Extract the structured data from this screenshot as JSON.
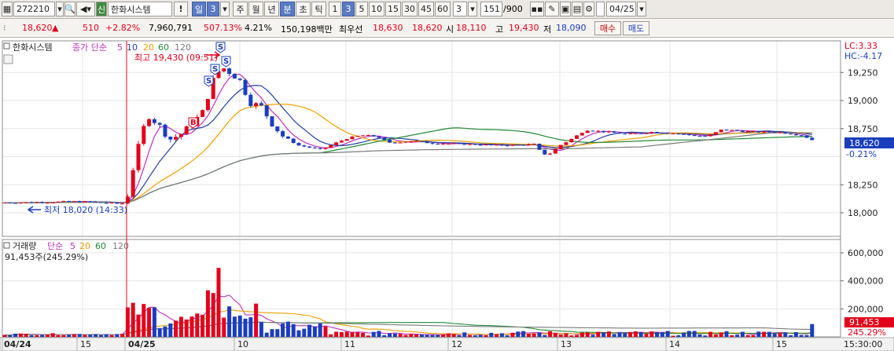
{
  "toolbar": {
    "code": "272210",
    "name": "한화시스템",
    "exclaim": "!",
    "period_selected": "일",
    "period_num": "3",
    "periods": [
      "주",
      "월",
      "년",
      "분",
      "초",
      "틱"
    ],
    "intervals": [
      "1",
      "3",
      "5",
      "10",
      "15",
      "30",
      "45",
      "60"
    ],
    "interval_selected": "3",
    "count_value": "3",
    "count_display": "151",
    "count_total": "/900",
    "date": "04/25"
  },
  "quote": {
    "price": "18,620",
    "up_arrow": "▲",
    "change": "510",
    "change_pct": "+2.82%",
    "volume": "7,960,791",
    "volume_ratio": "507.13%",
    "turnover": "4.21%",
    "amount": "150,198백만",
    "best_label": "최우선",
    "best_ask": "18,630",
    "best_bid": "18,620",
    "open_label": "시",
    "open": "18,110",
    "high_label": "고",
    "high": "19,430",
    "low_label": "저",
    "low": "18,090",
    "buy_label": "매수",
    "sell_label": "매도"
  },
  "price_panel": {
    "title": "한화시스템",
    "ma_label": "종가 단순",
    "ma_periods": [
      "5",
      "10",
      "20",
      "60",
      "120"
    ],
    "lc": "LC:3.33",
    "hc": "HC:-4.17",
    "high_note": "최고 19,430 (09:51)",
    "low_note": "최저 18,020 (14:33)",
    "current": "18,620",
    "current_pct": "-0.21%",
    "y_ticks": [
      "19,250",
      "19,000",
      "18,750",
      "18,250",
      "18,000"
    ],
    "signal_s": "S",
    "signal_b": "B"
  },
  "volume_panel": {
    "title": "거래량",
    "ma_label": "단순",
    "ma_periods": [
      "5",
      "20",
      "60",
      "120"
    ],
    "value_note": "91,453주(245.29%)",
    "y_ticks": [
      "600,000",
      "400,000",
      "200,000"
    ],
    "current": "91,453",
    "current_pct": "245.29%"
  },
  "x_axis": {
    "labels": [
      "04/24",
      "15",
      "04/25",
      "10",
      "11",
      "12",
      "13",
      "14",
      "15"
    ],
    "time": "15:30:00"
  },
  "colors": {
    "up": "#e3001b",
    "down": "#1a3dbf",
    "ma5": "#c032c0",
    "ma10": "#1e3f9e",
    "ma20": "#f0a000",
    "ma60": "#1e8a32",
    "ma120": "#7a7a7a"
  },
  "chart_data": {
    "type": "candlestick",
    "price_axis_ticks": [
      18000,
      18250,
      18750,
      19000,
      19250
    ],
    "volume_axis_ticks": [
      200000,
      400000,
      600000
    ],
    "previous_session_level": 18080,
    "session_high": 19430,
    "session_low": 18090,
    "last_price": 18620,
    "last_volume": 91453
  }
}
